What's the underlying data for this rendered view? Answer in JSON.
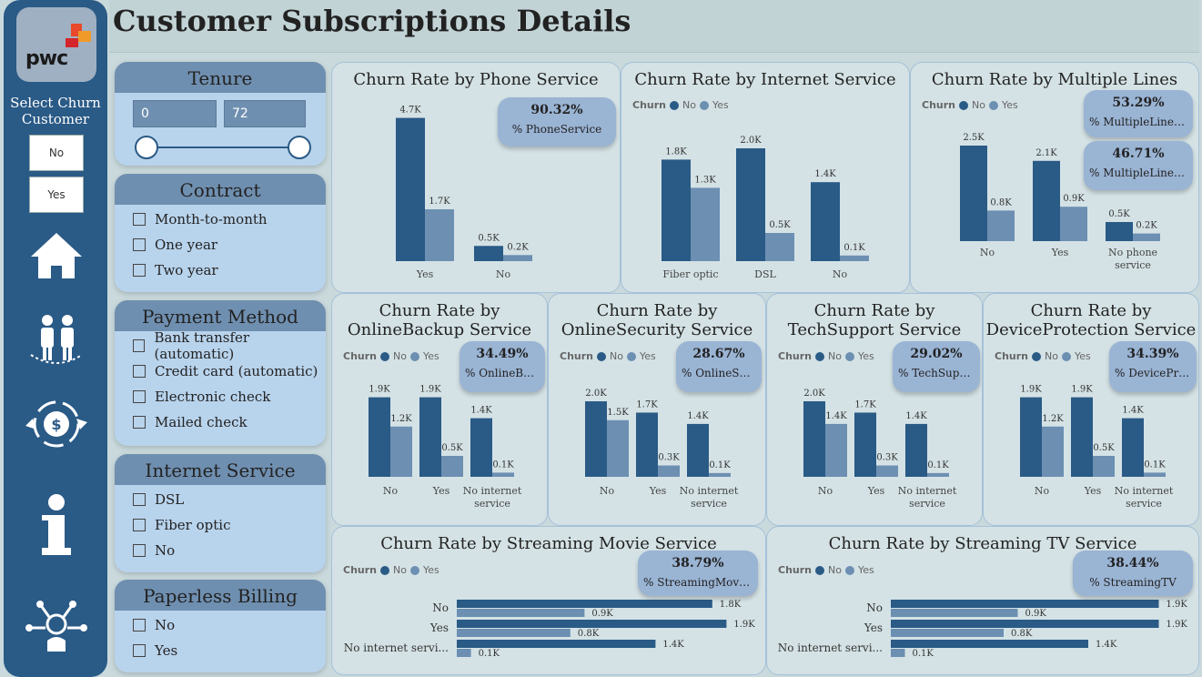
{
  "header": {
    "title": "Customer Subscriptions Details"
  },
  "nav": {
    "logo_text": "pwc",
    "select_title": "Select Churn Customer",
    "buttons": [
      "No",
      "Yes"
    ],
    "icons": [
      "home-icon",
      "customers-icon",
      "payment-cycle-icon",
      "info-icon",
      "network-user-icon"
    ]
  },
  "filters": {
    "tenure": {
      "title": "Tenure",
      "min": "0",
      "max": "72"
    },
    "contract": {
      "title": "Contract",
      "options": [
        "Month-to-month",
        "One year",
        "Two year"
      ]
    },
    "payment": {
      "title": "Payment Method",
      "options": [
        "Bank transfer (automatic)",
        "Credit card (automatic)",
        "Electronic check",
        "Mailed check"
      ]
    },
    "internet": {
      "title": "Internet Service",
      "options": [
        "DSL",
        "Fiber optic",
        "No"
      ]
    },
    "paperless": {
      "title": "Paperless Billing",
      "options": [
        "No",
        "Yes"
      ]
    }
  },
  "legend": {
    "title": "Churn",
    "no": "No",
    "yes": "Yes"
  },
  "colors": {
    "no": "#2a5a86",
    "yes": "#6c8fb2",
    "nav": "#2a5a86",
    "panel": "#b8d3ec",
    "kpi": "#9ab4d4"
  },
  "cards": {
    "phone": {
      "title": "Churn Rate by Phone Service",
      "kpi_value": "90.32%",
      "kpi_label": "% PhoneService"
    },
    "internet": {
      "title": "Churn Rate by Internet Service"
    },
    "multiple": {
      "title": "Churn Rate by Multiple Lines",
      "kpi1_value": "53.29%",
      "kpi1_label": "% MultipleLinesNo",
      "kpi2_value": "46.71%",
      "kpi2_label": "% MultipleLinesYes"
    },
    "backup": {
      "title1": "Churn Rate by",
      "title2": "OnlineBackup Service",
      "kpi_value": "34.49%",
      "kpi_label": "% OnlineBack..."
    },
    "security": {
      "title1": "Churn Rate by",
      "title2": "OnlineSecurity Service",
      "kpi_value": "28.67%",
      "kpi_label": "% OnlineSecu..."
    },
    "techsupport": {
      "title1": "Churn Rate by",
      "title2": "TechSupport Service",
      "kpi_value": "29.02%",
      "kpi_label": "% TechSupport"
    },
    "device": {
      "title1": "Churn Rate by",
      "title2": "DeviceProtection Service",
      "kpi_value": "34.39%",
      "kpi_label": "% DeviceProt..."
    },
    "movies": {
      "title": "Churn Rate by Streaming Movie Service",
      "kpi_value": "38.79%",
      "kpi_label": "% StreamingMovies"
    },
    "tv": {
      "title": "Churn Rate by Streaming TV Service",
      "kpi_value": "38.44%",
      "kpi_label": "% StreamingTV"
    }
  },
  "chart_data": [
    {
      "id": "phone",
      "type": "bar",
      "categories": [
        "Yes",
        "No"
      ],
      "series": [
        {
          "name": "No",
          "values": [
            4.7,
            0.5
          ],
          "labels": [
            "4.7K",
            "0.5K"
          ]
        },
        {
          "name": "Yes",
          "values": [
            1.7,
            0.2
          ],
          "labels": [
            "1.7K",
            "0.2K"
          ]
        }
      ]
    },
    {
      "id": "internet",
      "type": "bar",
      "categories": [
        "Fiber optic",
        "DSL",
        "No"
      ],
      "series": [
        {
          "name": "No",
          "values": [
            1.8,
            2.0,
            1.4
          ],
          "labels": [
            "1.8K",
            "2.0K",
            "1.4K"
          ]
        },
        {
          "name": "Yes",
          "values": [
            1.3,
            0.5,
            0.1
          ],
          "labels": [
            "1.3K",
            "0.5K",
            "0.1K"
          ]
        }
      ]
    },
    {
      "id": "multiple",
      "type": "bar",
      "categories": [
        "No",
        "Yes",
        "No phone service"
      ],
      "series": [
        {
          "name": "No",
          "values": [
            2.5,
            2.1,
            0.5
          ],
          "labels": [
            "2.5K",
            "2.1K",
            "0.5K"
          ]
        },
        {
          "name": "Yes",
          "values": [
            0.8,
            0.9,
            0.2
          ],
          "labels": [
            "0.8K",
            "0.9K",
            "0.2K"
          ]
        }
      ]
    },
    {
      "id": "backup",
      "type": "bar",
      "categories": [
        "No",
        "Yes",
        "No internet service"
      ],
      "series": [
        {
          "name": "No",
          "values": [
            1.9,
            1.9,
            1.4
          ],
          "labels": [
            "1.9K",
            "1.9K",
            "1.4K"
          ]
        },
        {
          "name": "Yes",
          "values": [
            1.2,
            0.5,
            0.1
          ],
          "labels": [
            "1.2K",
            "0.5K",
            "0.1K"
          ]
        }
      ]
    },
    {
      "id": "security",
      "type": "bar",
      "categories": [
        "No",
        "Yes",
        "No internet service"
      ],
      "series": [
        {
          "name": "No",
          "values": [
            2.0,
            1.7,
            1.4
          ],
          "labels": [
            "2.0K",
            "1.7K",
            "1.4K"
          ]
        },
        {
          "name": "Yes",
          "values": [
            1.5,
            0.3,
            0.1
          ],
          "labels": [
            "1.5K",
            "0.3K",
            "0.1K"
          ]
        }
      ]
    },
    {
      "id": "techsupport",
      "type": "bar",
      "categories": [
        "No",
        "Yes",
        "No internet service"
      ],
      "series": [
        {
          "name": "No",
          "values": [
            2.0,
            1.7,
            1.4
          ],
          "labels": [
            "2.0K",
            "1.7K",
            "1.4K"
          ]
        },
        {
          "name": "Yes",
          "values": [
            1.4,
            0.3,
            0.1
          ],
          "labels": [
            "1.4K",
            "0.3K",
            "0.1K"
          ]
        }
      ]
    },
    {
      "id": "device",
      "type": "bar",
      "categories": [
        "No",
        "Yes",
        "No internet service"
      ],
      "series": [
        {
          "name": "No",
          "values": [
            1.9,
            1.9,
            1.4
          ],
          "labels": [
            "1.9K",
            "1.9K",
            "1.4K"
          ]
        },
        {
          "name": "Yes",
          "values": [
            1.2,
            0.5,
            0.1
          ],
          "labels": [
            "1.2K",
            "0.5K",
            "0.1K"
          ]
        }
      ]
    },
    {
      "id": "movies",
      "type": "bar",
      "orientation": "horizontal",
      "categories": [
        "No",
        "Yes",
        "No internet servi..."
      ],
      "series": [
        {
          "name": "No",
          "values": [
            1.8,
            1.9,
            1.4
          ],
          "labels": [
            "1.8K",
            "1.9K",
            "1.4K"
          ]
        },
        {
          "name": "Yes",
          "values": [
            0.9,
            0.8,
            0.1
          ],
          "labels": [
            "0.9K",
            "0.8K",
            "0.1K"
          ]
        }
      ]
    },
    {
      "id": "tv",
      "type": "bar",
      "orientation": "horizontal",
      "categories": [
        "No",
        "Yes",
        "No internet servi..."
      ],
      "series": [
        {
          "name": "No",
          "values": [
            1.9,
            1.9,
            1.4
          ],
          "labels": [
            "1.9K",
            "1.9K",
            "1.4K"
          ]
        },
        {
          "name": "Yes",
          "values": [
            0.9,
            0.8,
            0.1
          ],
          "labels": [
            "0.9K",
            "0.8K",
            "0.1K"
          ]
        }
      ]
    }
  ]
}
